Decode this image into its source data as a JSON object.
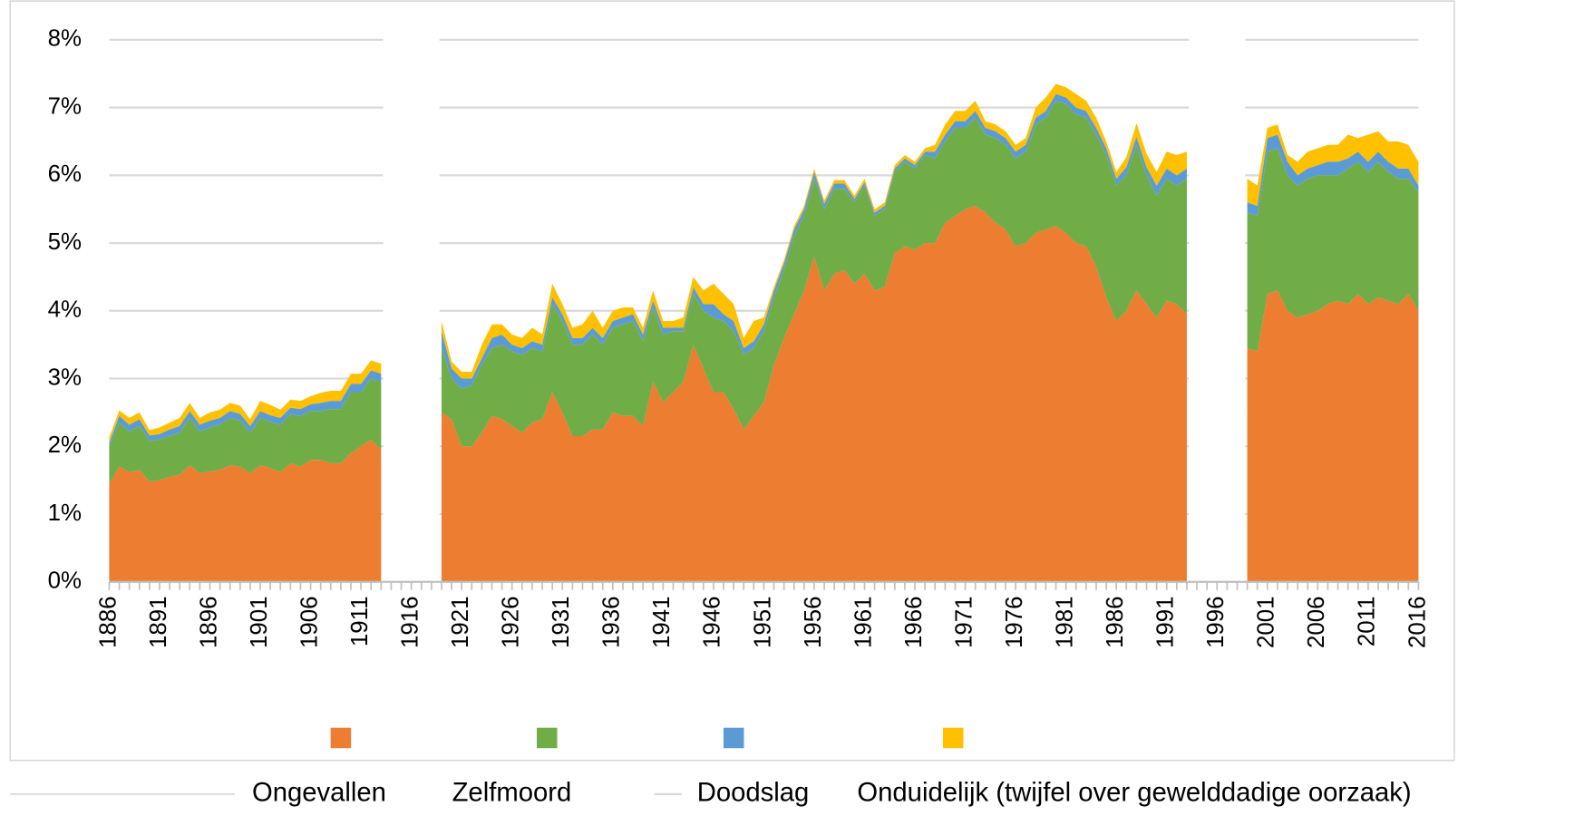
{
  "chart_data": {
    "type": "stacked-area",
    "x": [
      1886,
      1887,
      1888,
      1889,
      1890,
      1891,
      1892,
      1893,
      1894,
      1895,
      1896,
      1897,
      1898,
      1899,
      1900,
      1901,
      1902,
      1903,
      1904,
      1905,
      1906,
      1907,
      1908,
      1909,
      1910,
      1911,
      1912,
      1913,
      1914,
      1915,
      1916,
      1917,
      1918,
      1919,
      1920,
      1921,
      1922,
      1923,
      1924,
      1925,
      1926,
      1927,
      1928,
      1929,
      1930,
      1931,
      1932,
      1933,
      1934,
      1935,
      1936,
      1937,
      1938,
      1939,
      1940,
      1941,
      1942,
      1943,
      1944,
      1945,
      1946,
      1947,
      1948,
      1949,
      1950,
      1951,
      1952,
      1953,
      1954,
      1955,
      1956,
      1957,
      1958,
      1959,
      1960,
      1961,
      1962,
      1963,
      1964,
      1965,
      1966,
      1967,
      1968,
      1969,
      1970,
      1971,
      1972,
      1973,
      1974,
      1975,
      1976,
      1977,
      1978,
      1979,
      1980,
      1981,
      1982,
      1983,
      1984,
      1985,
      1986,
      1987,
      1988,
      1989,
      1990,
      1991,
      1992,
      1993,
      1994,
      1995,
      1996,
      1997,
      1998,
      1999,
      2000,
      2001,
      2002,
      2003,
      2004,
      2005,
      2006,
      2007,
      2008,
      2009,
      2010,
      2011,
      2012,
      2013,
      2014,
      2015,
      2016
    ],
    "series": [
      {
        "name": "Ongevallen",
        "color": "#ed7d31",
        "values": [
          1.45,
          1.7,
          1.62,
          1.65,
          1.48,
          1.5,
          1.55,
          1.58,
          1.72,
          1.6,
          1.63,
          1.65,
          1.72,
          1.7,
          1.6,
          1.72,
          1.68,
          1.62,
          1.75,
          1.7,
          1.8,
          1.8,
          1.75,
          1.75,
          1.9,
          2.0,
          2.1,
          1.95,
          null,
          null,
          null,
          null,
          null,
          2.5,
          2.4,
          2.0,
          2.0,
          2.2,
          2.45,
          2.4,
          2.3,
          2.2,
          2.35,
          2.4,
          2.8,
          2.5,
          2.15,
          2.15,
          2.25,
          2.25,
          2.5,
          2.45,
          2.45,
          2.3,
          2.95,
          2.65,
          2.8,
          2.95,
          3.5,
          3.15,
          2.8,
          2.8,
          2.55,
          2.25,
          2.45,
          2.65,
          3.2,
          3.6,
          3.95,
          4.3,
          4.8,
          4.3,
          4.55,
          4.6,
          4.4,
          4.55,
          4.3,
          4.35,
          4.85,
          4.95,
          4.9,
          5.0,
          5.0,
          5.3,
          5.4,
          5.5,
          5.55,
          5.45,
          5.3,
          5.2,
          4.95,
          5.0,
          5.15,
          5.2,
          5.25,
          5.15,
          5.0,
          4.95,
          4.65,
          4.2,
          3.85,
          4.0,
          4.3,
          4.1,
          3.9,
          4.15,
          4.1,
          3.95,
          null,
          null,
          null,
          null,
          null,
          3.45,
          3.4,
          4.25,
          4.3,
          4.0,
          3.9,
          3.95,
          4.0,
          4.1,
          4.15,
          4.1,
          4.25,
          4.1,
          4.2,
          4.15,
          4.1,
          4.25,
          4.0
        ]
      },
      {
        "name": "Zelfmoord",
        "color": "#70ad47",
        "values": [
          0.55,
          0.65,
          0.6,
          0.65,
          0.6,
          0.6,
          0.6,
          0.62,
          0.7,
          0.62,
          0.65,
          0.67,
          0.7,
          0.68,
          0.6,
          0.7,
          0.68,
          0.7,
          0.72,
          0.75,
          0.72,
          0.72,
          0.8,
          0.8,
          0.9,
          0.8,
          0.9,
          1.0,
          null,
          null,
          null,
          null,
          null,
          0.95,
          0.6,
          0.85,
          0.9,
          1.0,
          1.0,
          1.1,
          1.1,
          1.15,
          1.1,
          1.0,
          1.3,
          1.35,
          1.35,
          1.35,
          1.4,
          1.25,
          1.25,
          1.35,
          1.4,
          1.25,
          1.1,
          1.0,
          0.9,
          0.75,
          0.75,
          0.85,
          1.1,
          1.05,
          1.15,
          1.1,
          1.0,
          1.05,
          1.0,
          1.0,
          1.15,
          1.1,
          1.15,
          1.2,
          1.25,
          1.2,
          1.2,
          1.3,
          1.1,
          1.15,
          1.2,
          1.25,
          1.2,
          1.3,
          1.25,
          1.2,
          1.3,
          1.2,
          1.3,
          1.15,
          1.25,
          1.25,
          1.3,
          1.35,
          1.6,
          1.65,
          1.85,
          1.9,
          1.9,
          1.9,
          1.95,
          2.1,
          2.0,
          2.0,
          2.15,
          1.9,
          1.8,
          1.8,
          1.75,
          2.0,
          null,
          null,
          null,
          null,
          null,
          2.0,
          2.0,
          2.1,
          2.1,
          2.0,
          1.95,
          2.0,
          2.0,
          1.9,
          1.85,
          2.0,
          1.95,
          1.95,
          2.0,
          1.9,
          1.85,
          1.7,
          1.75
        ]
      },
      {
        "name": "Doodslag",
        "color": "#5b9bd5",
        "values": [
          0.05,
          0.1,
          0.1,
          0.1,
          0.08,
          0.08,
          0.1,
          0.1,
          0.1,
          0.1,
          0.1,
          0.1,
          0.1,
          0.1,
          0.1,
          0.1,
          0.1,
          0.1,
          0.1,
          0.1,
          0.1,
          0.12,
          0.12,
          0.12,
          0.12,
          0.12,
          0.12,
          0.12,
          null,
          null,
          null,
          null,
          null,
          0.25,
          0.15,
          0.15,
          0.1,
          0.1,
          0.15,
          0.15,
          0.1,
          0.1,
          0.1,
          0.1,
          0.1,
          0.1,
          0.1,
          0.1,
          0.1,
          0.1,
          0.1,
          0.1,
          0.1,
          0.1,
          0.1,
          0.1,
          0.05,
          0.05,
          0.1,
          0.1,
          0.2,
          0.1,
          0.15,
          0.1,
          0.1,
          0.1,
          0.1,
          0.1,
          0.1,
          0.1,
          0.1,
          0.08,
          0.08,
          0.08,
          0.05,
          0.05,
          0.05,
          0.05,
          0.05,
          0.05,
          0.05,
          0.05,
          0.1,
          0.1,
          0.1,
          0.1,
          0.1,
          0.1,
          0.1,
          0.1,
          0.1,
          0.1,
          0.1,
          0.1,
          0.1,
          0.1,
          0.1,
          0.1,
          0.1,
          0.1,
          0.1,
          0.12,
          0.12,
          0.12,
          0.15,
          0.15,
          0.15,
          0.15,
          null,
          null,
          null,
          null,
          null,
          0.15,
          0.15,
          0.2,
          0.2,
          0.2,
          0.15,
          0.15,
          0.15,
          0.2,
          0.2,
          0.15,
          0.15,
          0.15,
          0.15,
          0.15,
          0.15,
          0.15,
          0.1
        ]
      },
      {
        "name": "Onduidelijk (twijfel over gewelddadige oorzaak)",
        "color": "#ffc000",
        "values": [
          0.08,
          0.08,
          0.1,
          0.1,
          0.08,
          0.1,
          0.1,
          0.12,
          0.12,
          0.1,
          0.12,
          0.12,
          0.12,
          0.12,
          0.1,
          0.15,
          0.15,
          0.12,
          0.12,
          0.12,
          0.12,
          0.15,
          0.15,
          0.15,
          0.15,
          0.15,
          0.15,
          0.15,
          null,
          null,
          null,
          null,
          null,
          0.15,
          0.1,
          0.1,
          0.1,
          0.2,
          0.2,
          0.15,
          0.15,
          0.15,
          0.2,
          0.15,
          0.2,
          0.15,
          0.15,
          0.2,
          0.25,
          0.15,
          0.15,
          0.15,
          0.1,
          0.1,
          0.15,
          0.1,
          0.1,
          0.15,
          0.15,
          0.2,
          0.3,
          0.3,
          0.25,
          0.15,
          0.3,
          0.1,
          0.05,
          0.05,
          0.05,
          0.05,
          0.05,
          0.05,
          0.05,
          0.05,
          0.05,
          0.05,
          0.05,
          0.05,
          0.05,
          0.05,
          0.05,
          0.05,
          0.1,
          0.15,
          0.15,
          0.15,
          0.15,
          0.1,
          0.1,
          0.1,
          0.1,
          0.1,
          0.15,
          0.2,
          0.15,
          0.15,
          0.2,
          0.15,
          0.15,
          0.1,
          0.1,
          0.15,
          0.2,
          0.2,
          0.2,
          0.25,
          0.3,
          0.25,
          null,
          null,
          null,
          null,
          null,
          0.35,
          0.3,
          0.15,
          0.15,
          0.1,
          0.2,
          0.25,
          0.25,
          0.25,
          0.25,
          0.35,
          0.2,
          0.4,
          0.3,
          0.3,
          0.4,
          0.35,
          0.35
        ]
      }
    ],
    "xlim": [
      1886,
      2016
    ],
    "xticks": [
      1886,
      1891,
      1896,
      1901,
      1906,
      1911,
      1916,
      1921,
      1926,
      1931,
      1936,
      1941,
      1946,
      1951,
      1956,
      1961,
      1966,
      1971,
      1976,
      1981,
      1986,
      1991,
      1996,
      2001,
      2006,
      2011,
      2016
    ],
    "ylim": [
      0,
      8
    ],
    "yticks": [
      {
        "value": 0,
        "label": "0%"
      },
      {
        "value": 1,
        "label": "1%"
      },
      {
        "value": 2,
        "label": "2%"
      },
      {
        "value": 3,
        "label": "3%"
      },
      {
        "value": 4,
        "label": "4%"
      },
      {
        "value": 5,
        "label": "5%"
      },
      {
        "value": 6,
        "label": "6%"
      },
      {
        "value": 7,
        "label": "7%"
      },
      {
        "value": 8,
        "label": "8%"
      }
    ],
    "grid": true,
    "legend": "bottom"
  }
}
